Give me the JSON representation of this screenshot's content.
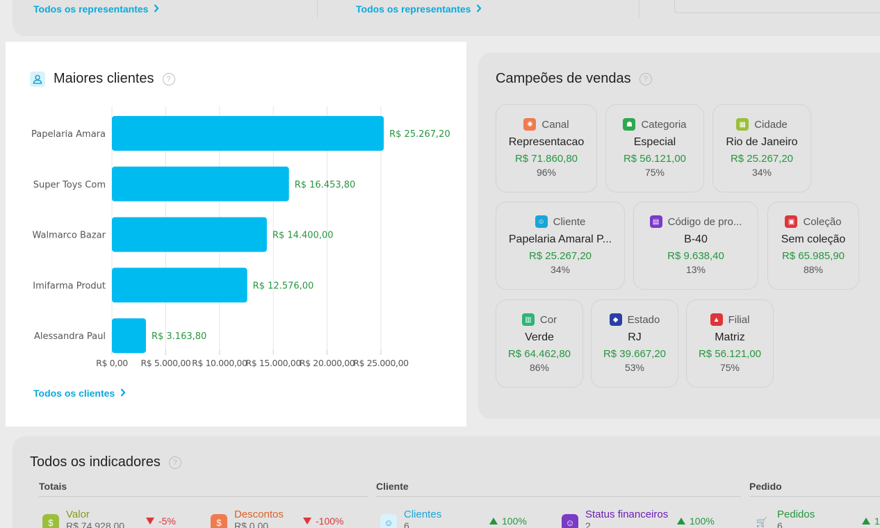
{
  "top": {
    "link1": "Todos os representantes",
    "link2": "Todos os representantes"
  },
  "maiores": {
    "title": "Maiores clientes",
    "link": "Todos os clientes"
  },
  "chart_data": {
    "type": "bar",
    "orientation": "horizontal",
    "title": "Maiores clientes",
    "categories": [
      "Papelaria Amara",
      "Super Toys Com",
      "Walmarco Bazar",
      "Imifarma Produt",
      "Alessandra Paul"
    ],
    "values": [
      25267.2,
      16453.8,
      14400.0,
      12576.0,
      3163.8
    ],
    "value_labels": [
      "R$ 25.267,20",
      "R$ 16.453,80",
      "R$ 14.400,00",
      "R$ 12.576,00",
      "R$ 3.163,80"
    ],
    "x_ticks": [
      0,
      5000,
      10000,
      15000,
      20000,
      25000
    ],
    "x_tick_labels": [
      "R$ 0,00",
      "R$ 5.000,00",
      "R$ 10.000,00",
      "R$ 15.000,00",
      "R$ 20.000,00",
      "R$ 25.000,00"
    ],
    "xlim": [
      0,
      25000
    ],
    "grid": true,
    "bar_color": "#00bbf0",
    "label_color": "#26963e"
  },
  "campeoes": {
    "title": "Campeões de vendas",
    "tiles": [
      {
        "label": "Canal",
        "value": "Representacao",
        "amount": "R$ 71.860,80",
        "pct": "96%",
        "icon": "channel-icon",
        "color": "#f07b4f"
      },
      {
        "label": "Categoria",
        "value": "Especial",
        "amount": "R$ 56.121,00",
        "pct": "75%",
        "icon": "category-icon",
        "color": "#2fa84f"
      },
      {
        "label": "Cidade",
        "value": "Rio de Janeiro",
        "amount": "R$ 25.267,20",
        "pct": "34%",
        "icon": "city-icon",
        "color": "#9bbf3b"
      },
      {
        "label": "Cliente",
        "value": "Papelaria Amaral P...",
        "amount": "R$ 25.267,20",
        "pct": "34%",
        "icon": "client-icon",
        "color": "#1ba5d6"
      },
      {
        "label": "Código de pro...",
        "value": "B-40",
        "amount": "R$ 9.638,40",
        "pct": "13%",
        "icon": "product-code-icon",
        "color": "#7a3bc7"
      },
      {
        "label": "Coleção",
        "value": "Sem coleção",
        "amount": "R$ 65.985,90",
        "pct": "88%",
        "icon": "collection-icon",
        "color": "#e0343b"
      },
      {
        "label": "Cor",
        "value": "Verde",
        "amount": "R$ 64.462,80",
        "pct": "86%",
        "icon": "color-icon",
        "color": "#2fb37a"
      },
      {
        "label": "Estado",
        "value": "RJ",
        "amount": "R$ 39.667,20",
        "pct": "53%",
        "icon": "state-icon",
        "color": "#2a3ea8"
      },
      {
        "label": "Filial",
        "value": "Matriz",
        "amount": "R$ 56.121,00",
        "pct": "75%",
        "icon": "branch-icon",
        "color": "#e0343b"
      }
    ]
  },
  "indicadores": {
    "title": "Todos os indicadores",
    "sections": [
      "Totais",
      "Cliente",
      "Pedido"
    ],
    "items": [
      {
        "name": "Valor",
        "sub": "R$ 74.928,00",
        "trend": "-5%",
        "dir": "down",
        "color": "#8a9a1a",
        "icon_bg": "#9bbf3b",
        "icon": "dollar-icon"
      },
      {
        "name": "Descontos",
        "sub": "R$ 0,00",
        "trend": "-100%",
        "dir": "down",
        "color": "#d9622b",
        "icon_bg": "#f07b4f",
        "icon": "discount-icon"
      },
      {
        "name": "Clientes",
        "sub": "6",
        "trend": "100%",
        "dir": "up",
        "color": "#1ba5d6",
        "icon_bg": "#d9f2fb",
        "icon": "clients-icon"
      },
      {
        "name": "Status financeiros",
        "sub": "2",
        "trend": "100%",
        "dir": "up",
        "color": "#6a1fb5",
        "icon_bg": "#7a3bc7",
        "icon": "finance-status-icon"
      },
      {
        "name": "Pedidos",
        "sub": "6",
        "trend": "1",
        "dir": "up",
        "color": "#26963e",
        "icon_bg": "#e3e3e3",
        "icon": "orders-icon"
      }
    ]
  }
}
